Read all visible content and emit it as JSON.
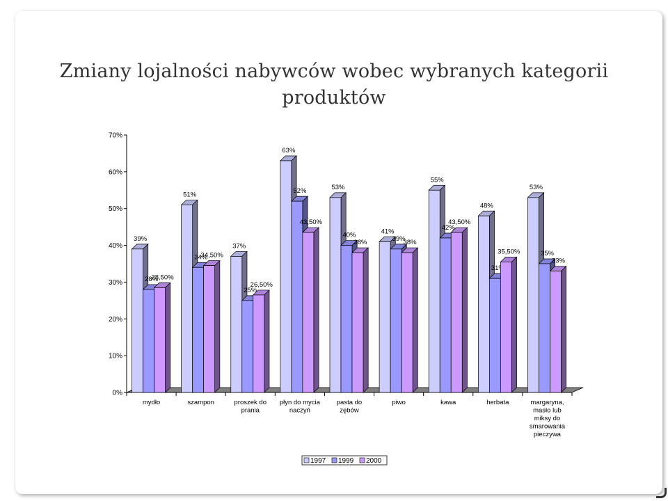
{
  "slide": {
    "title_line1": "Zmiany lojalności nabywców wobec wybranych kategorii",
    "title_line2": "produktów"
  },
  "colors": {
    "series_1997": "#ccccff",
    "series_1999": "#9999ff",
    "series_2000": "#cc99ff",
    "floor": "#808080",
    "axis": "#000000"
  },
  "chart_data": {
    "type": "bar",
    "ylim": [
      0,
      0.7
    ],
    "yticks": [
      "0%",
      "10%",
      "20%",
      "30%",
      "40%",
      "50%",
      "60%",
      "70%"
    ],
    "grid": false,
    "legend_position": "bottom",
    "categories": [
      [
        "mydło"
      ],
      [
        "szampon"
      ],
      [
        "proszek do",
        "prania"
      ],
      [
        "płyn do mycia",
        "naczyń"
      ],
      [
        "pasta do",
        "zębów"
      ],
      [
        "piwo"
      ],
      [
        "kawa"
      ],
      [
        "herbata"
      ],
      [
        "margaryna,",
        "masło lub",
        "miksy do",
        "smarowania",
        "pieczywa"
      ]
    ],
    "series": [
      {
        "name": "1997",
        "values": [
          0.39,
          0.51,
          0.37,
          0.63,
          0.53,
          0.41,
          0.55,
          0.48,
          0.53
        ],
        "labels": [
          "39%",
          "51%",
          "37%",
          "63%",
          "53%",
          "41%",
          "55%",
          "48%",
          "53%"
        ]
      },
      {
        "name": "1999",
        "values": [
          0.28,
          0.34,
          0.25,
          0.52,
          0.4,
          0.39,
          0.42,
          0.31,
          0.35
        ],
        "labels": [
          "28%",
          "34%",
          "25%",
          "52%",
          "40%",
          "39%",
          "42%",
          "31%",
          "35%"
        ]
      },
      {
        "name": "2000",
        "values": [
          0.285,
          0.345,
          0.265,
          0.435,
          0.38,
          0.38,
          0.435,
          0.355,
          0.33
        ],
        "labels": [
          "28,50%",
          "34,50%",
          "26,50%",
          "43,50%",
          "38%",
          "38%",
          "43,50%",
          "35,50%",
          "33%"
        ]
      }
    ]
  }
}
